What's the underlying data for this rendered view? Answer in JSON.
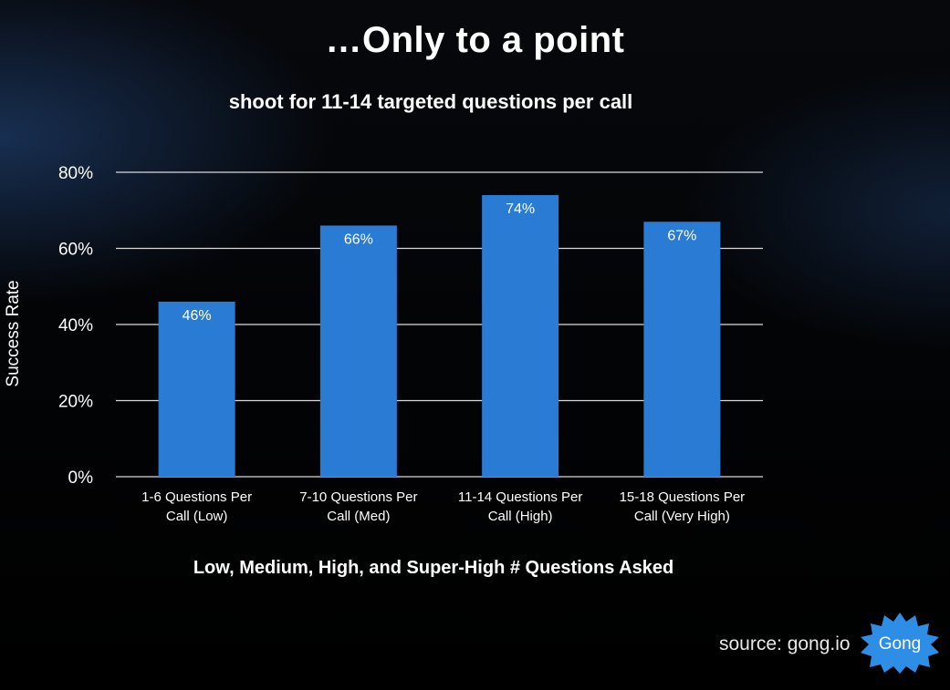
{
  "header": {
    "title": "…Only to a point",
    "subtitle": "shoot for 11-14 targeted questions per call"
  },
  "chart_data": {
    "type": "bar",
    "categories": [
      [
        "1-6 Questions Per",
        "Call (Low)"
      ],
      [
        "7-10 Questions Per",
        "Call (Med)"
      ],
      [
        "11-14 Questions Per",
        "Call (High)"
      ],
      [
        "15-18 Questions Per",
        "Call (Very High)"
      ]
    ],
    "values": [
      46,
      66,
      74,
      67
    ],
    "data_labels": [
      "46%",
      "66%",
      "74%",
      "67%"
    ],
    "ylabel": "Success Rate",
    "xlabel": "Low, Medium, High, and Super-High # Questions Asked",
    "ylim": [
      0,
      80
    ],
    "yticks": [
      0,
      20,
      40,
      60,
      80
    ],
    "ytick_labels": [
      "0%",
      "20%",
      "40%",
      "60%",
      "80%"
    ],
    "grid": true,
    "bar_color": "#2a7bd3"
  },
  "footer": {
    "source": "source: gong.io",
    "logo_text": "Gong",
    "logo_color": "#2e8ee6"
  }
}
